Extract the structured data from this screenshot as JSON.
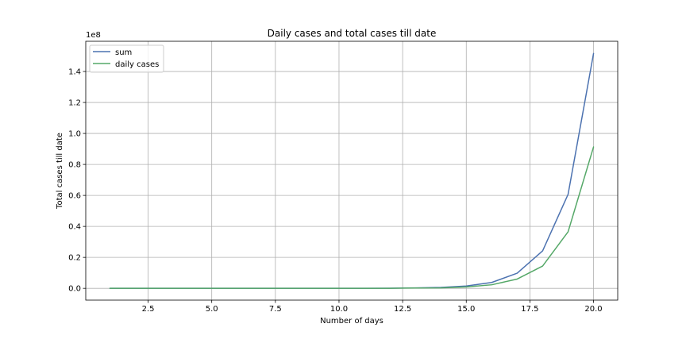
{
  "chart_data": {
    "type": "line",
    "title": "Daily cases and total cases till date",
    "xlabel": "Number of days",
    "ylabel": "Total cases till date",
    "y_offset_label": "1e8",
    "xlim": [
      0.05,
      20.95
    ],
    "ylim": [
      -7600000,
      159500000
    ],
    "grid": true,
    "legend_position": "upper-left",
    "x_ticks": [
      2.5,
      5.0,
      7.5,
      10.0,
      12.5,
      15.0,
      17.5,
      20.0
    ],
    "x_tick_labels": [
      "2.5",
      "5.0",
      "7.5",
      "10.0",
      "12.5",
      "15.0",
      "17.5",
      "20.0"
    ],
    "y_ticks": [
      0,
      20000000,
      40000000,
      60000000,
      80000000,
      100000000,
      120000000,
      140000000
    ],
    "y_tick_labels": [
      "0.0",
      "0.2",
      "0.4",
      "0.6",
      "0.8",
      "1.0",
      "1.2",
      "1.4"
    ],
    "x": [
      1,
      2,
      3,
      4,
      5,
      6,
      7,
      8,
      9,
      10,
      11,
      12,
      13,
      14,
      15,
      16,
      17,
      18,
      19,
      20
    ],
    "series": [
      {
        "name": "sum",
        "color": "#4c72b0",
        "values": [
          0,
          0,
          0,
          0,
          0,
          0,
          0,
          0,
          0,
          0,
          20000,
          80000,
          300000,
          600000,
          1500000,
          3800000,
          9800000,
          24200000,
          60700000,
          151600000
        ]
      },
      {
        "name": "daily cases",
        "color": "#55a868",
        "values": [
          0,
          0,
          0,
          0,
          0,
          0,
          0,
          0,
          0,
          0,
          10000,
          50000,
          200000,
          300000,
          900000,
          2300000,
          6000000,
          14400000,
          36500000,
          91300000
        ]
      }
    ]
  }
}
